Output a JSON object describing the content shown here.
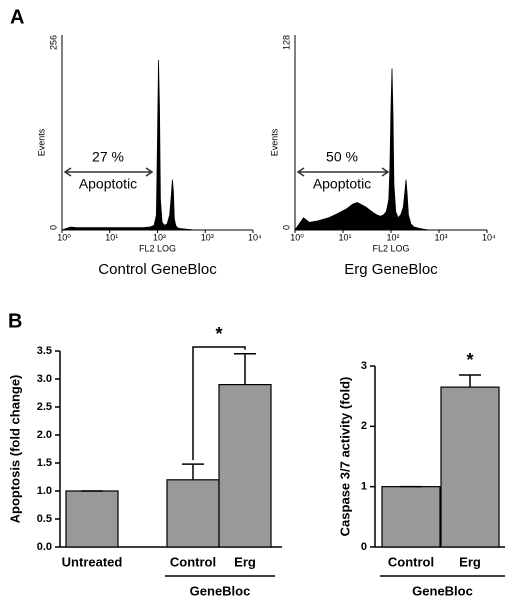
{
  "panel_labels": [
    "A",
    "B"
  ],
  "chart_data": [
    {
      "type": "area",
      "title": "Control GeneBloc",
      "xlabel": "FL2 LOG",
      "ylabel": "Events",
      "xscale": "log",
      "xlim": [
        1,
        10000
      ],
      "xticks": [
        {
          "value": 1,
          "label": "10⁰"
        },
        {
          "value": 10,
          "label": "10¹"
        },
        {
          "value": 100,
          "label": "10²"
        },
        {
          "value": 1000,
          "label": "10³"
        },
        {
          "value": 10000,
          "label": "10⁴"
        }
      ],
      "ylim": [
        0,
        256
      ],
      "yticks": [
        0,
        256
      ],
      "color": "#000000",
      "annotations": [
        "27 %",
        "Apoptotic"
      ],
      "x": [
        1,
        1.5,
        2,
        3,
        5,
        8,
        12,
        20,
        30,
        50,
        70,
        85,
        95,
        100,
        105,
        110,
        115,
        125,
        140,
        160,
        180,
        195,
        205,
        215,
        225,
        240,
        260,
        300,
        400,
        600
      ],
      "values": [
        0,
        4,
        3,
        3,
        3,
        3,
        3,
        3,
        3,
        3,
        4,
        6,
        20,
        120,
        223,
        160,
        40,
        10,
        6,
        8,
        20,
        45,
        66,
        50,
        15,
        6,
        3,
        2,
        1,
        0
      ]
    },
    {
      "type": "area",
      "title": "Erg GeneBloc",
      "xlabel": "FL2 LOG",
      "ylabel": "Events",
      "xscale": "log",
      "xlim": [
        1,
        10000
      ],
      "xticks": [
        {
          "value": 1,
          "label": "10⁰"
        },
        {
          "value": 10,
          "label": "10¹"
        },
        {
          "value": 100,
          "label": "10²"
        },
        {
          "value": 1000,
          "label": "10³"
        },
        {
          "value": 10000,
          "label": "10⁴"
        }
      ],
      "ylim": [
        0,
        128
      ],
      "yticks": [
        0,
        128
      ],
      "color": "#000000",
      "annotations": [
        "50 %",
        "Apoptotic"
      ],
      "x": [
        1,
        1.5,
        2,
        3,
        5,
        8,
        12,
        16,
        20,
        30,
        40,
        50,
        60,
        70,
        80,
        90,
        95,
        100,
        105,
        110,
        115,
        125,
        140,
        160,
        180,
        195,
        205,
        215,
        230,
        260,
        300,
        400,
        600
      ],
      "values": [
        0,
        8,
        5,
        6,
        8,
        11,
        14,
        17,
        18,
        15,
        12,
        10,
        9,
        10,
        12,
        20,
        40,
        80,
        106,
        75,
        30,
        12,
        8,
        10,
        15,
        25,
        33,
        25,
        10,
        4,
        2,
        1,
        0
      ]
    },
    {
      "type": "bar",
      "ylabel": "Apoptosis (fold change)",
      "group_label": "GeneBloc",
      "annotation": "*",
      "categories": [
        "Untreated",
        "Control",
        "Erg"
      ],
      "values": [
        1.0,
        1.2,
        2.9
      ],
      "errors": [
        0,
        0.28,
        0.55
      ],
      "color": "#999999",
      "ylim": [
        0,
        3.5
      ],
      "yticks": [
        {
          "value": 0,
          "label": "0.0"
        },
        0.5,
        {
          "value": 1,
          "label": "1.0"
        },
        1.5,
        {
          "value": 2,
          "label": "2.0"
        },
        2.5,
        {
          "value": 3,
          "label": "3.0"
        },
        3.5
      ]
    },
    {
      "type": "bar",
      "ylabel": "Caspase 3/7 activity (fold)",
      "group_label": "GeneBloc",
      "annotation": "*",
      "categories": [
        "Control",
        "Erg"
      ],
      "values": [
        1.0,
        2.65
      ],
      "errors": [
        0,
        0.2
      ],
      "color": "#999999",
      "ylim": [
        0,
        3
      ],
      "yticks": [
        0,
        1,
        2,
        3
      ]
    }
  ]
}
